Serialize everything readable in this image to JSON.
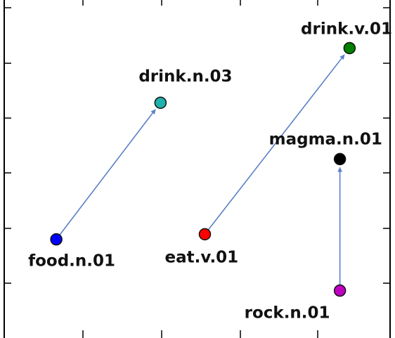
{
  "chart_data": {
    "type": "scatter",
    "title": "",
    "xlabel": "",
    "ylabel": "",
    "xlim": [
      0,
      10
    ],
    "ylim": [
      0,
      10
    ],
    "grid": false,
    "legend": "none",
    "points": [
      {
        "label": "food.n.01",
        "x": 1.35,
        "y": 2.95,
        "color": "#0000ff"
      },
      {
        "label": "drink.n.03",
        "x": 4.05,
        "y": 6.95,
        "color": "#20b2aa"
      },
      {
        "label": "eat.v.01",
        "x": 5.2,
        "y": 3.1,
        "color": "#ff0000"
      },
      {
        "label": "drink.v.01",
        "x": 8.95,
        "y": 8.55,
        "color": "#008000"
      },
      {
        "label": "magma.n.01",
        "x": 8.7,
        "y": 5.3,
        "color": "#000000"
      },
      {
        "label": "rock.n.01",
        "x": 8.7,
        "y": 1.45,
        "color": "#c000c0"
      }
    ],
    "arrows": [
      {
        "from": "food.n.01",
        "to": "drink.n.03"
      },
      {
        "from": "eat.v.01",
        "to": "drink.v.01"
      },
      {
        "from": "rock.n.01",
        "to": "magma.n.01"
      }
    ],
    "arrow_color": "#5b7fc7"
  }
}
